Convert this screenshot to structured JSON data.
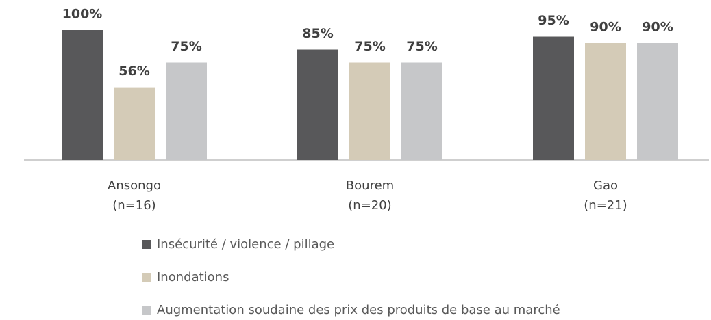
{
  "chart_data": {
    "type": "bar",
    "categories": [
      "Ansongo\n(n=16)",
      "Bourem\n(n=20)",
      "Gao\n(n=21)"
    ],
    "ylim": [
      0,
      100
    ],
    "series": [
      {
        "name": "Insécurité / violence / pillage",
        "color": "#58585a",
        "values": [
          100,
          85,
          95
        ],
        "value_labels": [
          "100%",
          "85%",
          "95%"
        ]
      },
      {
        "name": "Inondations",
        "color": "#d4cbb7",
        "values": [
          56,
          75,
          90
        ],
        "value_labels": [
          "56%",
          "75%",
          "90%"
        ]
      },
      {
        "name": "Augmentation soudaine des prix des produits de base au marché",
        "color": "#c6c7c9",
        "values": [
          75,
          75,
          90
        ],
        "value_labels": [
          "75%",
          "75%",
          "90%"
        ]
      }
    ]
  }
}
